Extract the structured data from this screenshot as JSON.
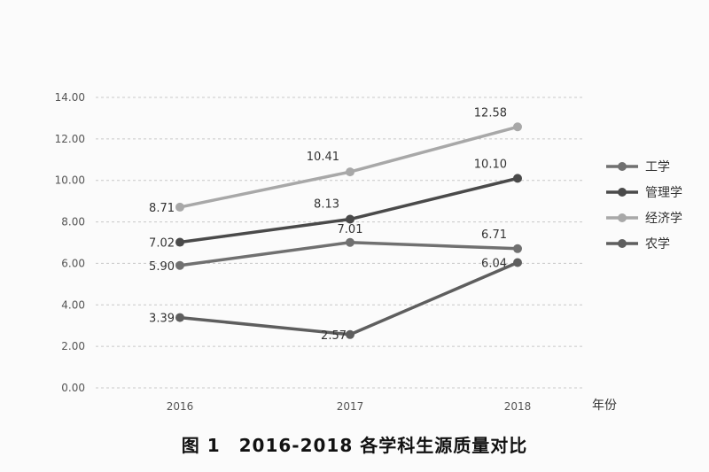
{
  "caption": "图 1　2016-2018 各学科生源质量对比",
  "chart_data": {
    "type": "line",
    "title": "图 1　2016-2018 各学科生源质量对比",
    "x": [
      "2016",
      "2017",
      "2018"
    ],
    "xlabel": "年份",
    "ylabel": "",
    "ylim": [
      0,
      14
    ],
    "yticks": [
      "0.00",
      "2.00",
      "4.00",
      "6.00",
      "8.00",
      "10.00",
      "12.00",
      "14.00"
    ],
    "grid": true,
    "legend_position": "right",
    "series": [
      {
        "name": "工学",
        "values": [
          5.9,
          7.01,
          6.71
        ],
        "labels": [
          "5.90",
          "7.01",
          "6.71"
        ],
        "color": "#707070"
      },
      {
        "name": "管理学",
        "values": [
          7.02,
          8.13,
          10.1
        ],
        "labels": [
          "7.02",
          "8.13",
          "10.10"
        ],
        "color": "#4a4a4a"
      },
      {
        "name": "经济学",
        "values": [
          8.71,
          10.41,
          12.58
        ],
        "labels": [
          "8.71",
          "10.41",
          "12.58"
        ],
        "color": "#a8a8a8"
      },
      {
        "name": "农学",
        "values": [
          3.39,
          2.57,
          6.04
        ],
        "labels": [
          "3.39",
          "2.57",
          "6.04"
        ],
        "color": "#5e5e5e"
      }
    ]
  }
}
